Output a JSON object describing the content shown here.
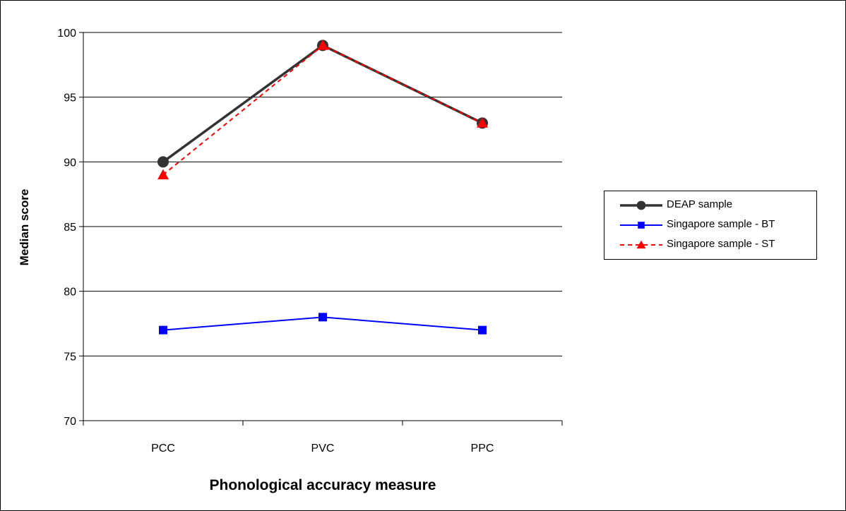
{
  "chart_data": {
    "type": "line",
    "xlabel": "Phonological accuracy measure",
    "ylabel": "Median score",
    "categories": [
      "PCC",
      "PVC",
      "PPC"
    ],
    "ylim": [
      70,
      100
    ],
    "yticks": [
      70,
      75,
      80,
      85,
      90,
      95,
      100
    ],
    "grid": true,
    "legend_position": "right",
    "series": [
      {
        "name": "DEAP sample",
        "values": [
          90,
          99,
          93
        ],
        "color": "#333333",
        "marker": "circle",
        "dash": "solid"
      },
      {
        "name": "Singapore sample - BT",
        "values": [
          77,
          78,
          77
        ],
        "color": "#0000ff",
        "marker": "square",
        "dash": "solid"
      },
      {
        "name": "Singapore sample - ST",
        "values": [
          89,
          99,
          93
        ],
        "color": "#ff0000",
        "marker": "triangle",
        "dash": "dashed"
      }
    ]
  }
}
